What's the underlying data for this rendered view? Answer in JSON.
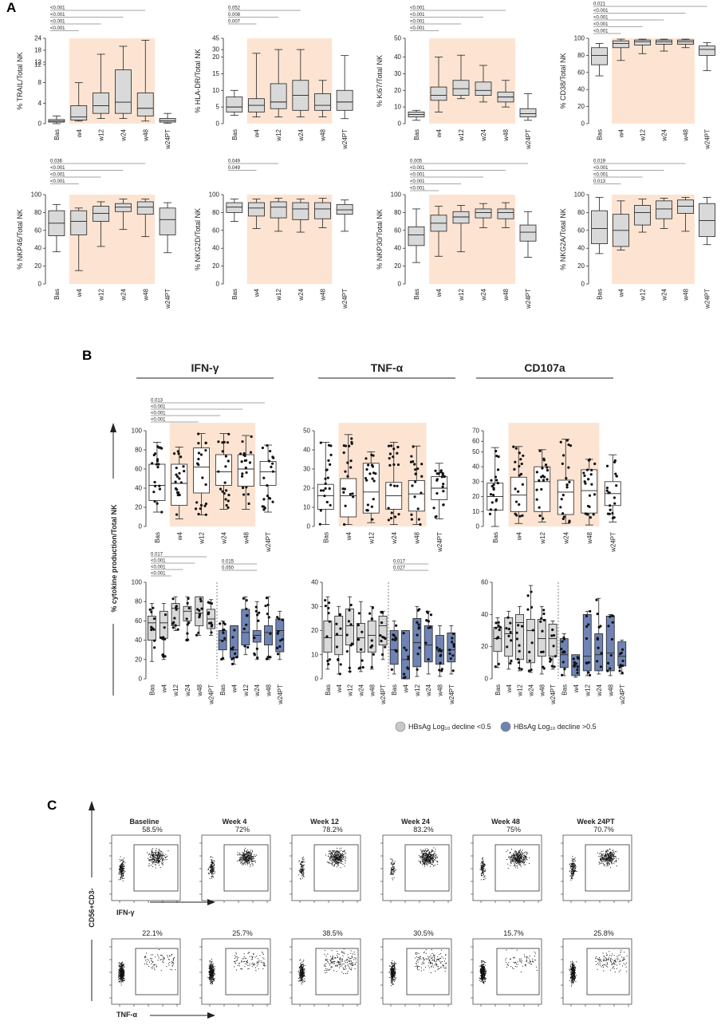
{
  "panels": {
    "A": "A",
    "B": "B",
    "C": "C"
  },
  "colors": {
    "shade": "#fde4d2",
    "box_gray": "#d9d9d9",
    "box_blue": "#6f84b4",
    "box_white": "#ffffff",
    "line": "#222222",
    "pline": "#888888"
  },
  "panelA": [
    {
      "ylabel": "% TRAIL/Total NK",
      "ticks": [
        "0",
        "4",
        "8",
        "12",
        "12",
        "18",
        "24"
      ],
      "pvals": [
        "<0.001",
        "<0.001",
        "<0.001",
        "<0.001"
      ],
      "cats": [
        "Bas",
        "w4",
        "w12",
        "w24",
        "w48",
        "w24PT"
      ]
    },
    {
      "ylabel": "% HLA-DR/Total NK",
      "ticks": [
        "0",
        "5",
        "10",
        "15",
        "20",
        "30",
        "45"
      ],
      "pvals": [
        "0.052",
        "0.008",
        "0.007"
      ],
      "cats": [
        "Bas",
        "w4",
        "w12",
        "w24",
        "w48",
        "w24PT"
      ]
    },
    {
      "ylabel": "% Ki67/Total NK",
      "ticks": [
        "0",
        "10",
        "20",
        "30",
        "40",
        "50"
      ],
      "pvals": [
        "<0.001",
        "<0.001",
        "<0.001",
        "<0.001"
      ],
      "cats": [
        "Bas",
        "w4",
        "w12",
        "w24",
        "w48",
        "w24PT"
      ]
    },
    {
      "ylabel": "% CD38/Total NK",
      "ticks": [
        "0",
        "20",
        "40",
        "60",
        "80",
        "100"
      ],
      "pvals": [
        "0.021",
        "<0.001",
        "<0.001",
        "<0.001",
        "<0.001"
      ],
      "cats": [
        "Bas",
        "w4",
        "w12",
        "w24",
        "w48",
        "w24PT"
      ]
    },
    {
      "ylabel": "% NKP46/Total NK",
      "ticks": [
        "0",
        "20",
        "40",
        "60",
        "80",
        "100"
      ],
      "pvals": [
        "0.036",
        "<0.001",
        "<0.001",
        "<0.001"
      ],
      "cats": [
        "Bas",
        "w4",
        "w12",
        "w24",
        "w48",
        "w24PT"
      ]
    },
    {
      "ylabel": "% NKG2D/Total NK",
      "ticks": [
        "0",
        "20",
        "40",
        "60",
        "80",
        "100"
      ],
      "pvals": [
        "0.049",
        "0.049"
      ],
      "cats": [
        "Bas",
        "w4",
        "w12",
        "w24",
        "w48",
        "w24PT"
      ]
    },
    {
      "ylabel": "% NKP30/Total NK",
      "ticks": [
        "0",
        "20",
        "40",
        "60",
        "80",
        "100"
      ],
      "pvals": [
        "0.005",
        "<0.001",
        "<0.001",
        "<0.001",
        "<0.001"
      ],
      "cats": [
        "Bas",
        "w4",
        "w12",
        "w24",
        "w48",
        "w24PT"
      ]
    },
    {
      "ylabel": "% NKG2A/Total NK",
      "ticks": [
        "0",
        "20",
        "40",
        "60",
        "80",
        "100"
      ],
      "pvals": [
        "0.019",
        "<0.001",
        "<0.001",
        "0.013"
      ],
      "cats": [
        "Bas",
        "w4",
        "w12",
        "w24",
        "w48",
        "w24PT"
      ]
    }
  ],
  "panelB": {
    "titles": [
      "IFN-γ",
      "TNF-α",
      "CD107a"
    ],
    "ylabel": "% cytokine production/Total NK",
    "cats": [
      "Bas",
      "w4",
      "w12",
      "w24",
      "w48",
      "w24PT"
    ],
    "top": [
      {
        "ticks": [
          "0",
          "20",
          "40",
          "60",
          "80",
          "100"
        ],
        "pvals": [
          "0.013",
          "<0.001",
          "<0.001",
          "<0.001"
        ]
      },
      {
        "ticks": [
          "0",
          "10",
          "20",
          "30",
          "40",
          "50"
        ],
        "pvals": []
      },
      {
        "ticks": [
          "0",
          "10",
          "20",
          "30",
          "40",
          "50",
          "60",
          "70"
        ],
        "pvals": []
      }
    ],
    "bottom": [
      {
        "ticks": [
          "0",
          "20",
          "40",
          "60",
          "80",
          "100"
        ],
        "pvals_left": [
          "0.017",
          "<0.001",
          "<0.001",
          "<0.001"
        ],
        "pvals_right": [
          "0.015",
          "0.050"
        ]
      },
      {
        "ticks": [
          "0",
          "10",
          "20",
          "30",
          "40"
        ],
        "pvals_left": [],
        "pvals_right": [
          "0.017",
          "0.027"
        ]
      },
      {
        "ticks": [
          "0",
          "20",
          "40",
          "60"
        ],
        "pvals_left": [],
        "pvals_right": []
      }
    ],
    "legend": [
      {
        "text": "HBsAg Log₁₀ decline <0.5",
        "color": "#c8c8c8"
      },
      {
        "text": "HBsAg Log₁₀ decline >0.5",
        "color": "#6f84b4"
      }
    ]
  },
  "panelC": {
    "timepoints": [
      "Baseline",
      "Week 4",
      "Week 12",
      "Week 24",
      "Week 48",
      "Week 24PT"
    ],
    "row1_pct": [
      "58.5%",
      "72%",
      "78.2%",
      "83.2%",
      "75%",
      "70.7%"
    ],
    "row2_pct": [
      "22.1%",
      "25.7%",
      "38.5%",
      "30.5%",
      "15.7%",
      "25.8%"
    ],
    "ylabel": "CD56+CD3-",
    "xlabel1": "IFN-γ",
    "xlabel2": "TNF-α"
  },
  "chart_data": [
    {
      "type": "box",
      "ylabel": "% TRAIL/Total NK",
      "categories": [
        "Bas",
        "w4",
        "w12",
        "w24",
        "w48",
        "w24PT"
      ],
      "series": [
        {
          "q1": [
            0.3,
            0.7,
            2,
            2,
            1.5,
            0.3
          ],
          "median": [
            0.5,
            1.3,
            3.5,
            4.2,
            3,
            0.6
          ],
          "q3": [
            0.8,
            3.5,
            6,
            10.5,
            6,
            1
          ],
          "min": [
            0,
            0.5,
            1,
            1,
            0.5,
            0.1
          ],
          "max": [
            1.5,
            8,
            16,
            20,
            23,
            2
          ]
        }
      ]
    },
    {
      "type": "box",
      "ylabel": "% HLA-DR/Total NK",
      "categories": [
        "Bas",
        "w4",
        "w12",
        "w24",
        "w48",
        "w24PT"
      ],
      "series": [
        {
          "q1": [
            3.5,
            3.5,
            4.5,
            4,
            4,
            4
          ],
          "median": [
            5,
            5.5,
            6.5,
            8.5,
            5.5,
            6.5
          ],
          "q3": [
            8,
            7.5,
            12,
            13,
            9,
            10
          ],
          "min": [
            2.5,
            2,
            2,
            2,
            2,
            1.5
          ],
          "max": [
            10,
            25,
            30,
            30,
            13,
            22
          ]
        }
      ]
    },
    {
      "type": "box",
      "ylabel": "% Ki67/Total NK",
      "categories": [
        "Bas",
        "w4",
        "w12",
        "w24",
        "w48",
        "w24PT"
      ],
      "series": [
        {
          "q1": [
            4,
            14,
            17,
            17,
            13,
            4
          ],
          "median": [
            5.5,
            17,
            21,
            20,
            16,
            6
          ],
          "q3": [
            7,
            22,
            26,
            25,
            19,
            9
          ],
          "min": [
            2,
            7,
            15,
            13,
            10,
            2
          ],
          "max": [
            8,
            40,
            41,
            35,
            26,
            18
          ]
        }
      ]
    },
    {
      "type": "box",
      "ylabel": "% CD38/Total NK",
      "categories": [
        "Bas",
        "w4",
        "w12",
        "w24",
        "w48",
        "w24PT"
      ],
      "series": [
        {
          "q1": [
            69,
            89,
            92,
            93,
            93,
            80
          ],
          "median": [
            80,
            94,
            96,
            96,
            96,
            87
          ],
          "q3": [
            89,
            97,
            98,
            98,
            98,
            91
          ],
          "min": [
            56,
            74,
            82,
            85,
            89,
            62
          ],
          "max": [
            94,
            99,
            99,
            99,
            99,
            95
          ]
        }
      ]
    },
    {
      "type": "box",
      "ylabel": "% NKP46/Total NK",
      "categories": [
        "Bas",
        "w4",
        "w12",
        "w24",
        "w48",
        "w24PT"
      ],
      "series": [
        {
          "q1": [
            54,
            55,
            70,
            81,
            78,
            55
          ],
          "median": [
            68,
            70,
            79,
            86,
            86,
            72
          ],
          "q3": [
            82,
            82,
            87,
            90,
            92,
            85
          ],
          "min": [
            36,
            15,
            42,
            61,
            53,
            35
          ],
          "max": [
            89,
            85,
            92,
            95,
            95,
            91
          ]
        }
      ]
    },
    {
      "type": "box",
      "ylabel": "% NKG2D/Total NK",
      "categories": [
        "Bas",
        "w4",
        "w12",
        "w24",
        "w48",
        "w24PT"
      ],
      "series": [
        {
          "q1": [
            80,
            76,
            74,
            72,
            73,
            78
          ],
          "median": [
            86,
            85,
            86,
            84,
            84,
            83
          ],
          "q3": [
            91,
            91,
            92,
            91,
            91,
            89
          ],
          "min": [
            70,
            62,
            59,
            58,
            63,
            59
          ],
          "max": [
            95,
            95,
            96,
            95,
            96,
            94
          ]
        }
      ]
    },
    {
      "type": "box",
      "ylabel": "% NKP30/Total NK",
      "categories": [
        "Bas",
        "w4",
        "w12",
        "w24",
        "w48",
        "w24PT"
      ],
      "series": [
        {
          "q1": [
            43,
            59,
            68,
            74,
            73,
            48
          ],
          "median": [
            55,
            68,
            75,
            80,
            80,
            58
          ],
          "q3": [
            64,
            77,
            81,
            84,
            84,
            66
          ],
          "min": [
            24,
            31,
            36,
            63,
            63,
            30
          ],
          "max": [
            84,
            87,
            88,
            90,
            91,
            81
          ]
        }
      ]
    },
    {
      "type": "box",
      "ylabel": "% NKG2A/Total NK",
      "categories": [
        "Bas",
        "w4",
        "w12",
        "w24",
        "w48",
        "w24PT"
      ],
      "series": [
        {
          "q1": [
            45,
            42,
            66,
            73,
            79,
            53
          ],
          "median": [
            62,
            60,
            80,
            84,
            87,
            71
          ],
          "q3": [
            82,
            78,
            88,
            93,
            94,
            90
          ],
          "min": [
            34,
            38,
            58,
            62,
            59,
            44
          ],
          "max": [
            97,
            93,
            95,
            96,
            97,
            97
          ]
        }
      ]
    },
    {
      "type": "box",
      "title": "IFN-γ",
      "categories": [
        "Bas",
        "w4",
        "w12",
        "w24",
        "w48",
        "w24PT"
      ],
      "series": [
        {
          "q1": [
            27,
            22,
            35,
            43,
            42,
            43
          ],
          "median": [
            43,
            45,
            62,
            57,
            60,
            57
          ],
          "q3": [
            65,
            65,
            82,
            75,
            75,
            68
          ],
          "min": [
            15,
            8,
            12,
            18,
            18,
            15
          ],
          "max": [
            88,
            83,
            97,
            97,
            95,
            85
          ]
        }
      ]
    },
    {
      "type": "box",
      "title": "TNF-α",
      "categories": [
        "Bas",
        "w4",
        "w12",
        "w24",
        "w48",
        "w24PT"
      ],
      "series": [
        {
          "q1": [
            9,
            5,
            7,
            9,
            8,
            14
          ],
          "median": [
            16,
            16,
            18,
            16,
            17,
            20
          ],
          "q3": [
            22,
            25,
            33,
            23,
            24,
            26
          ],
          "min": [
            1,
            1,
            2,
            1,
            1,
            4
          ],
          "max": [
            44,
            48,
            39,
            44,
            42,
            33
          ]
        }
      ]
    },
    {
      "type": "box",
      "title": "CD107a",
      "categories": [
        "Bas",
        "w4",
        "w12",
        "w24",
        "w48",
        "w24PT"
      ],
      "series": [
        {
          "q1": [
            11,
            10,
            10,
            8,
            9,
            14
          ],
          "median": [
            20,
            21,
            30,
            23,
            24,
            22
          ],
          "q3": [
            29,
            33,
            40,
            31,
            38,
            30
          ],
          "min": [
            0,
            2,
            3,
            2,
            1,
            3
          ],
          "max": [
            54,
            55,
            52,
            62,
            45,
            48
          ]
        }
      ]
    }
  ]
}
